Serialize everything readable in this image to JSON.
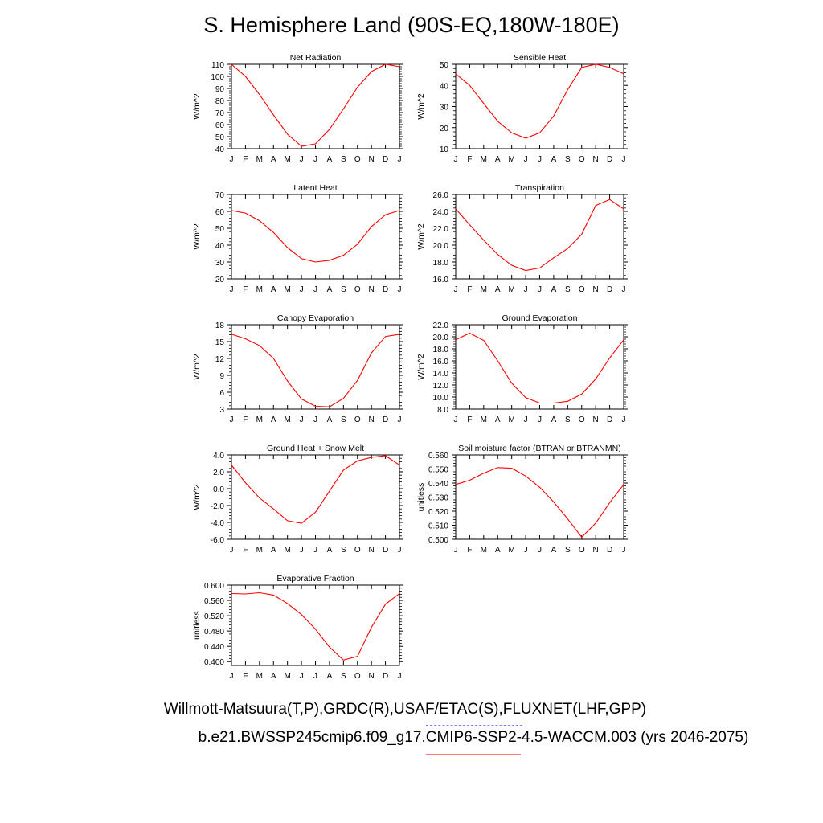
{
  "title": "S. Hemisphere Land (90S-EQ,180W-180E)",
  "footer": {
    "observations": "Willmott-Matsuura(T,P),GRDC(R),USAF/ETAC(S),FLUXNET(LHF,GPP)",
    "case": "b.e21.BWSSP245cmip6.f09_g17.CMIP6-SSP2-4.5-WACCM.003 (yrs 2046-2075)"
  },
  "colors": {
    "series": "#ff0000",
    "observations_legend": "#7f7fff",
    "case_legend": "#ff7f7f",
    "axes": "#000000"
  },
  "chart_data": [
    {
      "type": "line",
      "title": "Net Radiation",
      "ylabel": "W/m^2",
      "categories": [
        "J",
        "F",
        "M",
        "A",
        "M",
        "J",
        "J",
        "A",
        "S",
        "O",
        "N",
        "D",
        "J"
      ],
      "ylim": [
        40,
        110
      ],
      "yticks": [
        "40",
        "50",
        "60",
        "70",
        "80",
        "90",
        "100",
        "110"
      ],
      "series": [
        {
          "values": [
            110,
            100,
            85,
            68,
            52,
            42,
            44,
            56,
            73,
            91,
            104,
            110,
            108
          ]
        }
      ]
    },
    {
      "type": "line",
      "title": "Sensible Heat",
      "ylabel": "W/m^2",
      "categories": [
        "J",
        "F",
        "M",
        "A",
        "M",
        "J",
        "J",
        "A",
        "S",
        "O",
        "N",
        "D",
        "J"
      ],
      "ylim": [
        10,
        50
      ],
      "yticks": [
        "10",
        "20",
        "30",
        "40",
        "50"
      ],
      "series": [
        {
          "values": [
            45.5,
            40,
            31.5,
            23,
            17.5,
            15,
            17.5,
            25.5,
            38,
            48.5,
            50,
            48.5,
            45.5
          ]
        }
      ]
    },
    {
      "type": "line",
      "title": "Latent Heat",
      "ylabel": "W/m^2",
      "categories": [
        "J",
        "F",
        "M",
        "A",
        "M",
        "J",
        "J",
        "A",
        "S",
        "O",
        "N",
        "D",
        "J"
      ],
      "ylim": [
        20,
        70
      ],
      "yticks": [
        "20",
        "30",
        "40",
        "50",
        "60",
        "70"
      ],
      "series": [
        {
          "values": [
            60.5,
            59,
            54.5,
            47.5,
            38.5,
            32,
            30,
            31,
            34,
            40.5,
            51,
            58,
            60.5
          ]
        }
      ]
    },
    {
      "type": "line",
      "title": "Transpiration",
      "ylabel": "W/m^2",
      "categories": [
        "J",
        "F",
        "M",
        "A",
        "M",
        "J",
        "J",
        "A",
        "S",
        "O",
        "N",
        "D",
        "J"
      ],
      "ylim": [
        16,
        26
      ],
      "yticks": [
        "16.0",
        "18.0",
        "20.0",
        "22.0",
        "24.0",
        "26.0"
      ],
      "series": [
        {
          "values": [
            24.3,
            22.4,
            20.6,
            18.9,
            17.6,
            17.0,
            17.3,
            18.5,
            19.6,
            21.3,
            24.7,
            25.4,
            24.3
          ]
        }
      ]
    },
    {
      "type": "line",
      "title": "Canopy Evaporation",
      "ylabel": "W/m^2",
      "categories": [
        "J",
        "F",
        "M",
        "A",
        "M",
        "J",
        "J",
        "A",
        "S",
        "O",
        "N",
        "D",
        "J"
      ],
      "ylim": [
        3,
        18
      ],
      "yticks": [
        "3",
        "6",
        "9",
        "12",
        "15",
        "18"
      ],
      "series": [
        {
          "values": [
            16.3,
            15.5,
            14.3,
            12.0,
            8.0,
            4.8,
            3.5,
            3.4,
            4.9,
            8.1,
            13.0,
            15.9,
            16.3
          ]
        }
      ]
    },
    {
      "type": "line",
      "title": "Ground Evaporation",
      "ylabel": "W/m^2",
      "categories": [
        "J",
        "F",
        "M",
        "A",
        "M",
        "J",
        "J",
        "A",
        "S",
        "O",
        "N",
        "D",
        "J"
      ],
      "ylim": [
        8,
        22
      ],
      "yticks": [
        "8.0",
        "10.0",
        "12.0",
        "14.0",
        "16.0",
        "18.0",
        "20.0",
        "22.0"
      ],
      "series": [
        {
          "values": [
            19.5,
            20.6,
            19.4,
            16.0,
            12.3,
            9.9,
            9.0,
            9.0,
            9.3,
            10.5,
            13.0,
            16.5,
            19.5
          ]
        }
      ]
    },
    {
      "type": "line",
      "title": "Ground Heat + Snow Melt",
      "ylabel": "W/m^2",
      "categories": [
        "J",
        "F",
        "M",
        "A",
        "M",
        "J",
        "J",
        "A",
        "S",
        "O",
        "N",
        "D",
        "J"
      ],
      "ylim": [
        -6,
        4
      ],
      "yticks": [
        "-6.0",
        "-4.0",
        "-2.0",
        "0.0",
        "2.0",
        "4.0"
      ],
      "series": [
        {
          "values": [
            2.8,
            0.7,
            -1.1,
            -2.4,
            -3.8,
            -4.1,
            -2.8,
            -0.3,
            2.2,
            3.3,
            3.7,
            3.9,
            2.8
          ]
        }
      ]
    },
    {
      "type": "line",
      "title": "Soil moisture factor (BTRAN or BTRANMN)",
      "ylabel": "unitless",
      "categories": [
        "J",
        "F",
        "M",
        "A",
        "M",
        "J",
        "J",
        "A",
        "S",
        "O",
        "N",
        "D",
        "J"
      ],
      "ylim": [
        0.5,
        0.56
      ],
      "yticks": [
        "0.500",
        "0.510",
        "0.520",
        "0.530",
        "0.540",
        "0.550",
        "0.560"
      ],
      "series": [
        {
          "values": [
            0.539,
            0.542,
            0.547,
            0.551,
            0.5505,
            0.545,
            0.537,
            0.5265,
            0.5145,
            0.5015,
            0.5115,
            0.526,
            0.539
          ]
        }
      ]
    },
    {
      "type": "line",
      "title": "Evaporative Fraction",
      "ylabel": "unitless",
      "categories": [
        "J",
        "F",
        "M",
        "A",
        "M",
        "J",
        "J",
        "A",
        "S",
        "O",
        "N",
        "D",
        "J"
      ],
      "ylim": [
        0.39,
        0.6
      ],
      "yticks": [
        "0.400",
        "0.440",
        "0.480",
        "0.520",
        "0.560",
        "0.600"
      ],
      "series": [
        {
          "values": [
            0.578,
            0.577,
            0.58,
            0.574,
            0.552,
            0.523,
            0.485,
            0.438,
            0.404,
            0.414,
            0.49,
            0.55,
            0.578
          ]
        }
      ]
    }
  ]
}
